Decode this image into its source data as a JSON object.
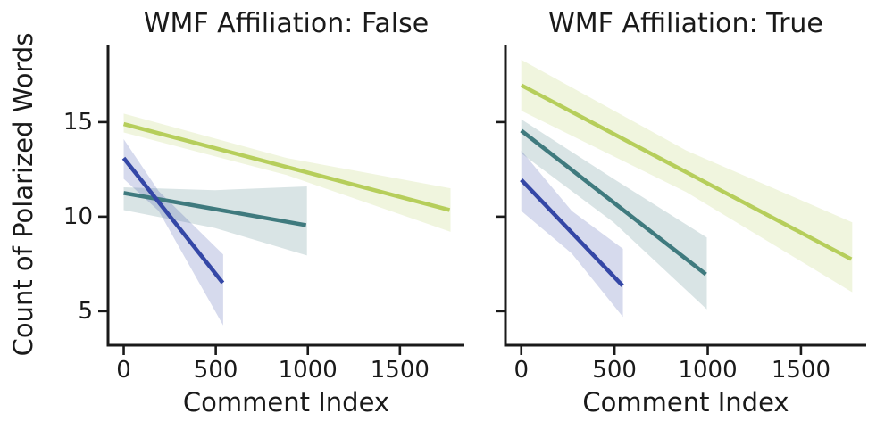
{
  "figure": {
    "ylabel": "Count of Polarized Words",
    "text_color": "#1a1a1a",
    "axis_color": "#1a1a1a",
    "background": "#ffffff"
  },
  "chart_data": [
    {
      "type": "line",
      "title": "WMF Affiliation: False",
      "xlabel": "Comment Index",
      "ylabel": "Count of Polarized Words",
      "xlim": [
        -85,
        1850
      ],
      "ylim": [
        3.2,
        19.1
      ],
      "xticks": [
        0,
        500,
        1000,
        1500
      ],
      "yticks": [
        5,
        10,
        15
      ],
      "ytick_labels_visible": true,
      "grid": false,
      "legend": "none",
      "series": [
        {
          "name": "green-trend",
          "color": "#b6ce5b",
          "line": {
            "x": [
              0,
              1770
            ],
            "y": [
              14.9,
              10.35
            ]
          },
          "band": {
            "x": [
              0,
              885,
              1775
            ],
            "upper": [
              15.45,
              13.1,
              11.5
            ],
            "lower": [
              14.45,
              12.2,
              9.2
            ]
          }
        },
        {
          "name": "teal-trend",
          "color": "#3f7a7e",
          "line": {
            "x": [
              0,
              990
            ],
            "y": [
              11.25,
              9.55
            ]
          },
          "band": {
            "x": [
              0,
              495,
              995
            ],
            "upper": [
              11.55,
              11.4,
              11.6
            ],
            "lower": [
              10.35,
              9.4,
              7.95
            ]
          }
        },
        {
          "name": "blue-trend",
          "color": "#3447a6",
          "line": {
            "x": [
              0,
              538
            ],
            "y": [
              13.1,
              6.5
            ]
          },
          "band": {
            "x": [
              0,
              190,
              540
            ],
            "upper": [
              14.1,
              11.35,
              8.0
            ],
            "lower": [
              12.0,
              10.3,
              4.25
            ]
          }
        }
      ]
    },
    {
      "type": "line",
      "title": "WMF Affiliation: True",
      "xlabel": "Comment Index",
      "ylabel": "Count of Polarized Words",
      "xlim": [
        -85,
        1850
      ],
      "ylim": [
        3.2,
        19.1
      ],
      "xticks": [
        0,
        500,
        1000,
        1500
      ],
      "yticks": [
        5,
        10,
        15
      ],
      "ytick_labels_visible": false,
      "grid": false,
      "legend": "none",
      "series": [
        {
          "name": "green-trend",
          "color": "#b6ce5b",
          "line": {
            "x": [
              0,
              1770
            ],
            "y": [
              16.95,
              7.75
            ]
          },
          "band": {
            "x": [
              0,
              885,
              1775
            ],
            "upper": [
              18.3,
              13.5,
              9.7
            ],
            "lower": [
              15.6,
              11.3,
              6.0
            ]
          }
        },
        {
          "name": "teal-trend",
          "color": "#3f7a7e",
          "line": {
            "x": [
              0,
              990
            ],
            "y": [
              14.55,
              6.95
            ]
          },
          "band": {
            "x": [
              0,
              495,
              995
            ],
            "upper": [
              15.15,
              12.0,
              8.9
            ],
            "lower": [
              13.35,
              9.7,
              5.1
            ]
          }
        },
        {
          "name": "blue-trend",
          "color": "#3447a6",
          "line": {
            "x": [
              0,
              543
            ],
            "y": [
              11.95,
              6.35
            ]
          },
          "band": {
            "x": [
              0,
              271,
              545
            ],
            "upper": [
              13.5,
              10.3,
              8.3
            ],
            "lower": [
              10.3,
              8.05,
              4.7
            ]
          }
        }
      ]
    }
  ]
}
